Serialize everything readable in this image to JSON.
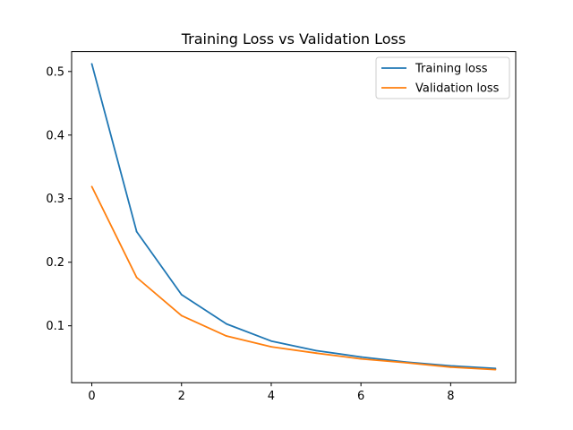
{
  "chart_data": {
    "type": "line",
    "title": "Training Loss vs Validation Loss",
    "xlabel": "",
    "ylabel": "",
    "xlim": [
      -0.45,
      9.45
    ],
    "ylim": [
      0.0105,
      0.5313
    ],
    "xticks": [
      0,
      2,
      4,
      6,
      8
    ],
    "xtick_labels": [
      "0",
      "2",
      "4",
      "6",
      "8"
    ],
    "yticks": [
      0.1,
      0.2,
      0.3,
      0.4,
      0.5
    ],
    "ytick_labels": [
      "0.1",
      "0.2",
      "0.3",
      "0.4",
      "0.5"
    ],
    "grid": false,
    "legend_position": "top-right",
    "x": [
      0,
      1,
      2,
      3,
      4,
      5,
      6,
      7,
      8,
      9
    ],
    "series": [
      {
        "name": "Training loss",
        "color": "#1f77b4",
        "values": [
          0.512,
          0.248,
          0.149,
          0.103,
          0.076,
          0.061,
          0.051,
          0.043,
          0.037,
          0.033
        ]
      },
      {
        "name": "Validation loss",
        "color": "#ff7f0e",
        "values": [
          0.319,
          0.176,
          0.116,
          0.084,
          0.067,
          0.057,
          0.048,
          0.042,
          0.035,
          0.031
        ]
      }
    ]
  }
}
